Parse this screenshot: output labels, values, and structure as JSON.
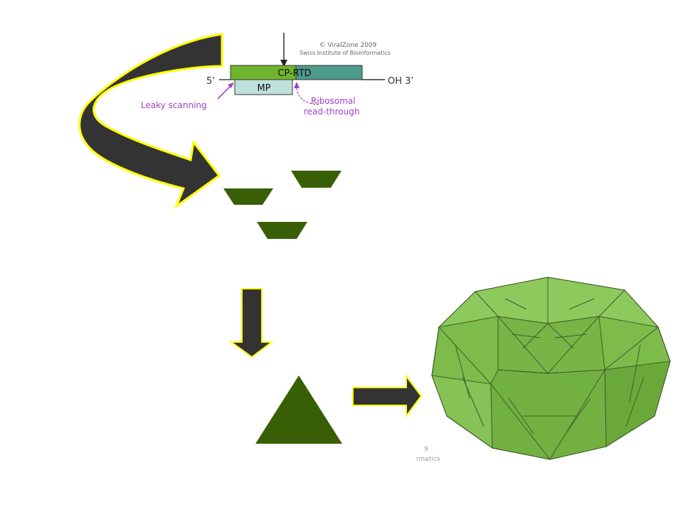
{
  "genome_map": {
    "credit_line1": "© ViralZone 2009",
    "credit_line2": "Swiss Institute of Bioinformatics",
    "five_prime": "5’",
    "three_prime": "OH 3’",
    "cp_rtd": "CP-RTD",
    "mp": "MP",
    "leaky_scanning": "Leaky scanning",
    "ribosomal_line1": "Ribosomal",
    "ribosomal_line2": "read-through"
  },
  "virion_credit": {
    "line1": "9",
    "line2": "rmatics"
  },
  "colors": {
    "cp_green": "#6fb52b",
    "rtd_teal": "#4e9a8d",
    "mp_blue": "#bfe1de",
    "annotation_purple": "#a040c8",
    "arrow_fill": "#333333",
    "arrow_outline": "#ffff00",
    "subunit_green": "#385f06",
    "capsid_green": "#7dbb4a"
  }
}
